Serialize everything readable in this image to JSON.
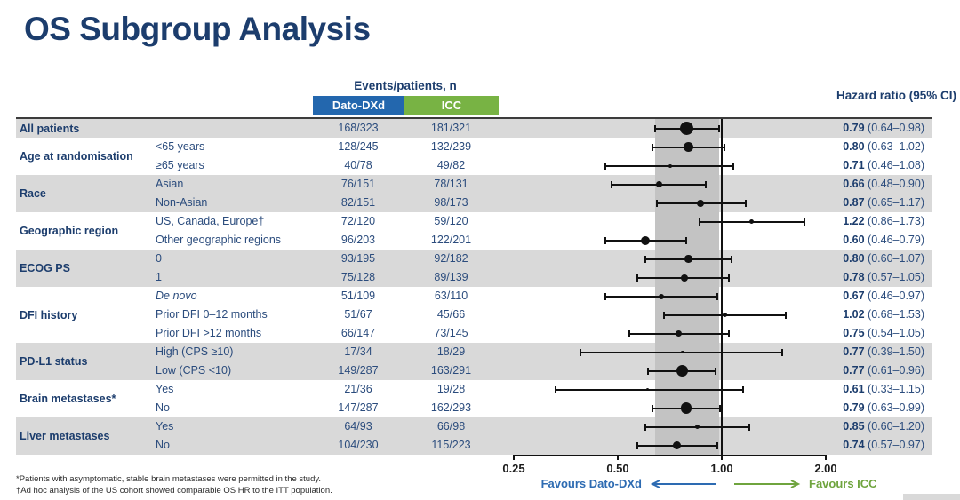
{
  "title": "OS Subgroup Analysis",
  "table": {
    "events_header": "Events/patients, n",
    "arm1": {
      "label": "Dato-DXd",
      "color": "#2367ae"
    },
    "arm2": {
      "label": "ICC",
      "color": "#78b344"
    },
    "hr_header": "Hazard ratio (95% CI)"
  },
  "favours": {
    "left": "Favours Dato-DXd",
    "right": "Favours ICC"
  },
  "footnotes": [
    "*Patients with asymptomatic, stable brain metastases were permitted in the study.",
    "†Ad hoc analysis of the US cohort showed comparable OS HR to the ITT population."
  ],
  "colors": {
    "navy": "#1c3d6d",
    "body_text": "#2b4c7d",
    "dato_blue": "#2367ae",
    "icc_green": "#78b344",
    "favours_green": "#6fa43e",
    "favours_blue": "#2d6bb2",
    "stripe_gray": "#d9d9d9",
    "band_gray": "#c3c3c3",
    "marker_black": "#111111"
  },
  "chart_data": {
    "type": "scatter",
    "subtype": "forest-plot",
    "xscale": "log2",
    "xlim": [
      0.25,
      2.0
    ],
    "ticks": [
      {
        "value": 0.25,
        "label": "0.25"
      },
      {
        "value": 0.5,
        "label": "0.50"
      },
      {
        "value": 1.0,
        "label": "1.00"
      },
      {
        "value": 2.0,
        "label": "2.00"
      }
    ],
    "reference_line": 1.0,
    "shaded_band": {
      "from": 0.64,
      "to": 0.98,
      "meaning": "overall population 95% CI"
    },
    "groups": [
      {
        "label": "All patients",
        "shaded": true,
        "rows": [
          {
            "subgroup": "",
            "dato": "168/323",
            "icc": "181/321",
            "hr": 0.79,
            "lo": 0.64,
            "hi": 0.98,
            "hr_text": "0.79",
            "ci_text": "(0.64–0.98)",
            "size": 15
          }
        ]
      },
      {
        "label": "Age at randomisation",
        "shaded": false,
        "rows": [
          {
            "subgroup": "<65 years",
            "dato": "128/245",
            "icc": "132/239",
            "hr": 0.8,
            "lo": 0.63,
            "hi": 1.02,
            "hr_text": "0.80",
            "ci_text": "(0.63–1.02)",
            "size": 11
          },
          {
            "subgroup": "≥65 years",
            "dato": "40/78",
            "icc": "49/82",
            "hr": 0.71,
            "lo": 0.46,
            "hi": 1.08,
            "hr_text": "0.71",
            "ci_text": "(0.46–1.08)",
            "size": 4
          }
        ]
      },
      {
        "label": "Race",
        "shaded": true,
        "rows": [
          {
            "subgroup": "Asian",
            "dato": "76/151",
            "icc": "78/131",
            "hr": 0.66,
            "lo": 0.48,
            "hi": 0.9,
            "hr_text": "0.66",
            "ci_text": "(0.48–0.90)",
            "size": 7
          },
          {
            "subgroup": "Non-Asian",
            "dato": "82/151",
            "icc": "98/173",
            "hr": 0.87,
            "lo": 0.65,
            "hi": 1.17,
            "hr_text": "0.87",
            "ci_text": "(0.65–1.17)",
            "size": 8
          }
        ]
      },
      {
        "label": "Geographic region",
        "shaded": false,
        "rows": [
          {
            "subgroup": "US, Canada, Europe†",
            "dato": "72/120",
            "icc": "59/120",
            "hr": 1.22,
            "lo": 0.86,
            "hi": 1.73,
            "hr_text": "1.22",
            "ci_text": "(0.86–1.73)",
            "size": 5
          },
          {
            "subgroup": "Other geographic regions",
            "dato": "96/203",
            "icc": "122/201",
            "hr": 0.6,
            "lo": 0.46,
            "hi": 0.79,
            "hr_text": "0.60",
            "ci_text": "(0.46–0.79)",
            "size": 10
          }
        ]
      },
      {
        "label": "ECOG PS",
        "shaded": true,
        "rows": [
          {
            "subgroup": "0",
            "dato": "93/195",
            "icc": "92/182",
            "hr": 0.8,
            "lo": 0.6,
            "hi": 1.07,
            "hr_text": "0.80",
            "ci_text": "(0.60–1.07)",
            "size": 8.5
          },
          {
            "subgroup": "1",
            "dato": "75/128",
            "icc": "89/139",
            "hr": 0.78,
            "lo": 0.57,
            "hi": 1.05,
            "hr_text": "0.78",
            "ci_text": "(0.57–1.05)",
            "size": 8
          }
        ]
      },
      {
        "label": "DFI history",
        "shaded": false,
        "rows": [
          {
            "subgroup": "De novo",
            "italic": true,
            "dato": "51/109",
            "icc": "63/110",
            "hr": 0.67,
            "lo": 0.46,
            "hi": 0.97,
            "hr_text": "0.67",
            "ci_text": "(0.46–0.97)",
            "size": 6
          },
          {
            "subgroup": "Prior DFI 0–12 months",
            "dato": "51/67",
            "icc": "45/66",
            "hr": 1.02,
            "lo": 0.68,
            "hi": 1.53,
            "hr_text": "1.02",
            "ci_text": "(0.68–1.53)",
            "size": 5
          },
          {
            "subgroup": "Prior DFI >12 months",
            "dato": "66/147",
            "icc": "73/145",
            "hr": 0.75,
            "lo": 0.54,
            "hi": 1.05,
            "hr_text": "0.75",
            "ci_text": "(0.54–1.05)",
            "size": 7
          }
        ]
      },
      {
        "label": "PD-L1 status",
        "shaded": true,
        "rows": [
          {
            "subgroup": "High (CPS ≥10)",
            "dato": "17/34",
            "icc": "18/29",
            "hr": 0.77,
            "lo": 0.39,
            "hi": 1.5,
            "hr_text": "0.77",
            "ci_text": "(0.39–1.50)",
            "size": 3.5
          },
          {
            "subgroup": "Low (CPS <10)",
            "dato": "149/287",
            "icc": "163/291",
            "hr": 0.77,
            "lo": 0.61,
            "hi": 0.96,
            "hr_text": "0.77",
            "ci_text": "(0.61–0.96)",
            "size": 13
          }
        ]
      },
      {
        "label": "Brain metastases*",
        "shaded": false,
        "rows": [
          {
            "subgroup": "Yes",
            "dato": "21/36",
            "icc": "19/28",
            "hr": 0.61,
            "lo": 0.33,
            "hi": 1.15,
            "hr_text": "0.61",
            "ci_text": "(0.33–1.15)",
            "size": 3.5
          },
          {
            "subgroup": "No",
            "dato": "147/287",
            "icc": "162/293",
            "hr": 0.79,
            "lo": 0.63,
            "hi": 0.99,
            "hr_text": "0.79",
            "ci_text": "(0.63–0.99)",
            "size": 12.5
          }
        ]
      },
      {
        "label": "Liver metastases",
        "shaded": true,
        "rows": [
          {
            "subgroup": "Yes",
            "dato": "64/93",
            "icc": "66/98",
            "hr": 0.85,
            "lo": 0.6,
            "hi": 1.2,
            "hr_text": "0.85",
            "ci_text": "(0.60–1.20)",
            "size": 5.5
          },
          {
            "subgroup": "No",
            "dato": "104/230",
            "icc": "115/223",
            "hr": 0.74,
            "lo": 0.57,
            "hi": 0.97,
            "hr_text": "0.74",
            "ci_text": "(0.57–0.97)",
            "size": 9
          }
        ]
      }
    ]
  }
}
